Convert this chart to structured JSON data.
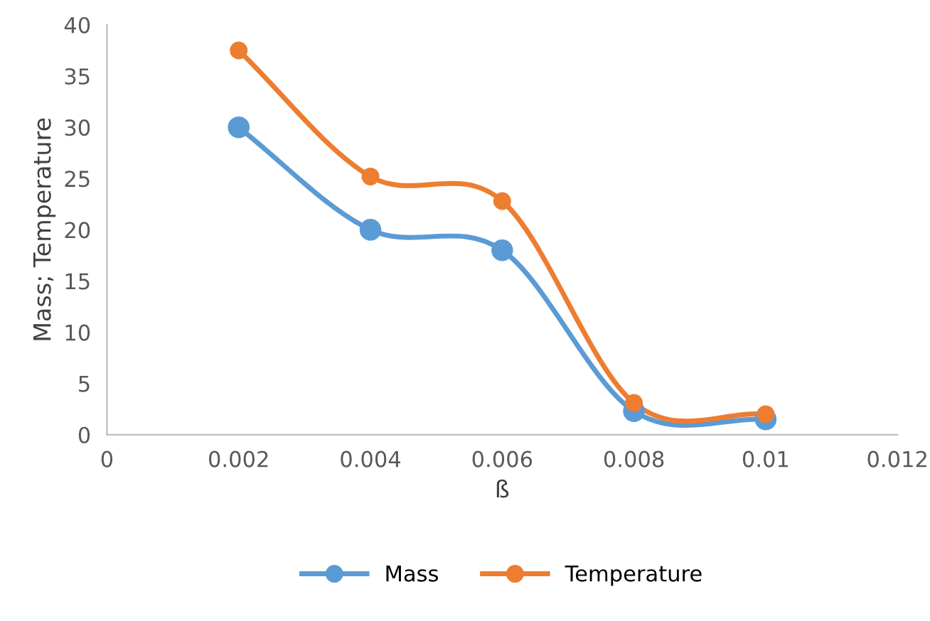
{
  "chart_data": {
    "type": "line",
    "xlabel": "ß",
    "ylabel": "Mass; Temperature",
    "x": [
      0.002,
      0.004,
      0.006,
      0.008,
      0.01
    ],
    "series": [
      {
        "name": "Mass",
        "color": "#5b9bd5",
        "values": [
          30,
          20,
          18,
          2.3,
          1.5
        ]
      },
      {
        "name": "Temperature",
        "color": "#ed7d31",
        "values": [
          37.5,
          25.2,
          22.8,
          3.1,
          2.0
        ]
      }
    ],
    "xlim": [
      0,
      0.012
    ],
    "xticks": [
      0,
      0.002,
      0.004,
      0.006,
      0.008,
      0.01,
      0.012
    ],
    "ylim": [
      0,
      40
    ],
    "yticks": [
      0,
      5,
      10,
      15,
      20,
      25,
      30,
      35,
      40
    ],
    "grid": false,
    "legend": "bottom",
    "marker": "circle",
    "line_style": "solid"
  }
}
